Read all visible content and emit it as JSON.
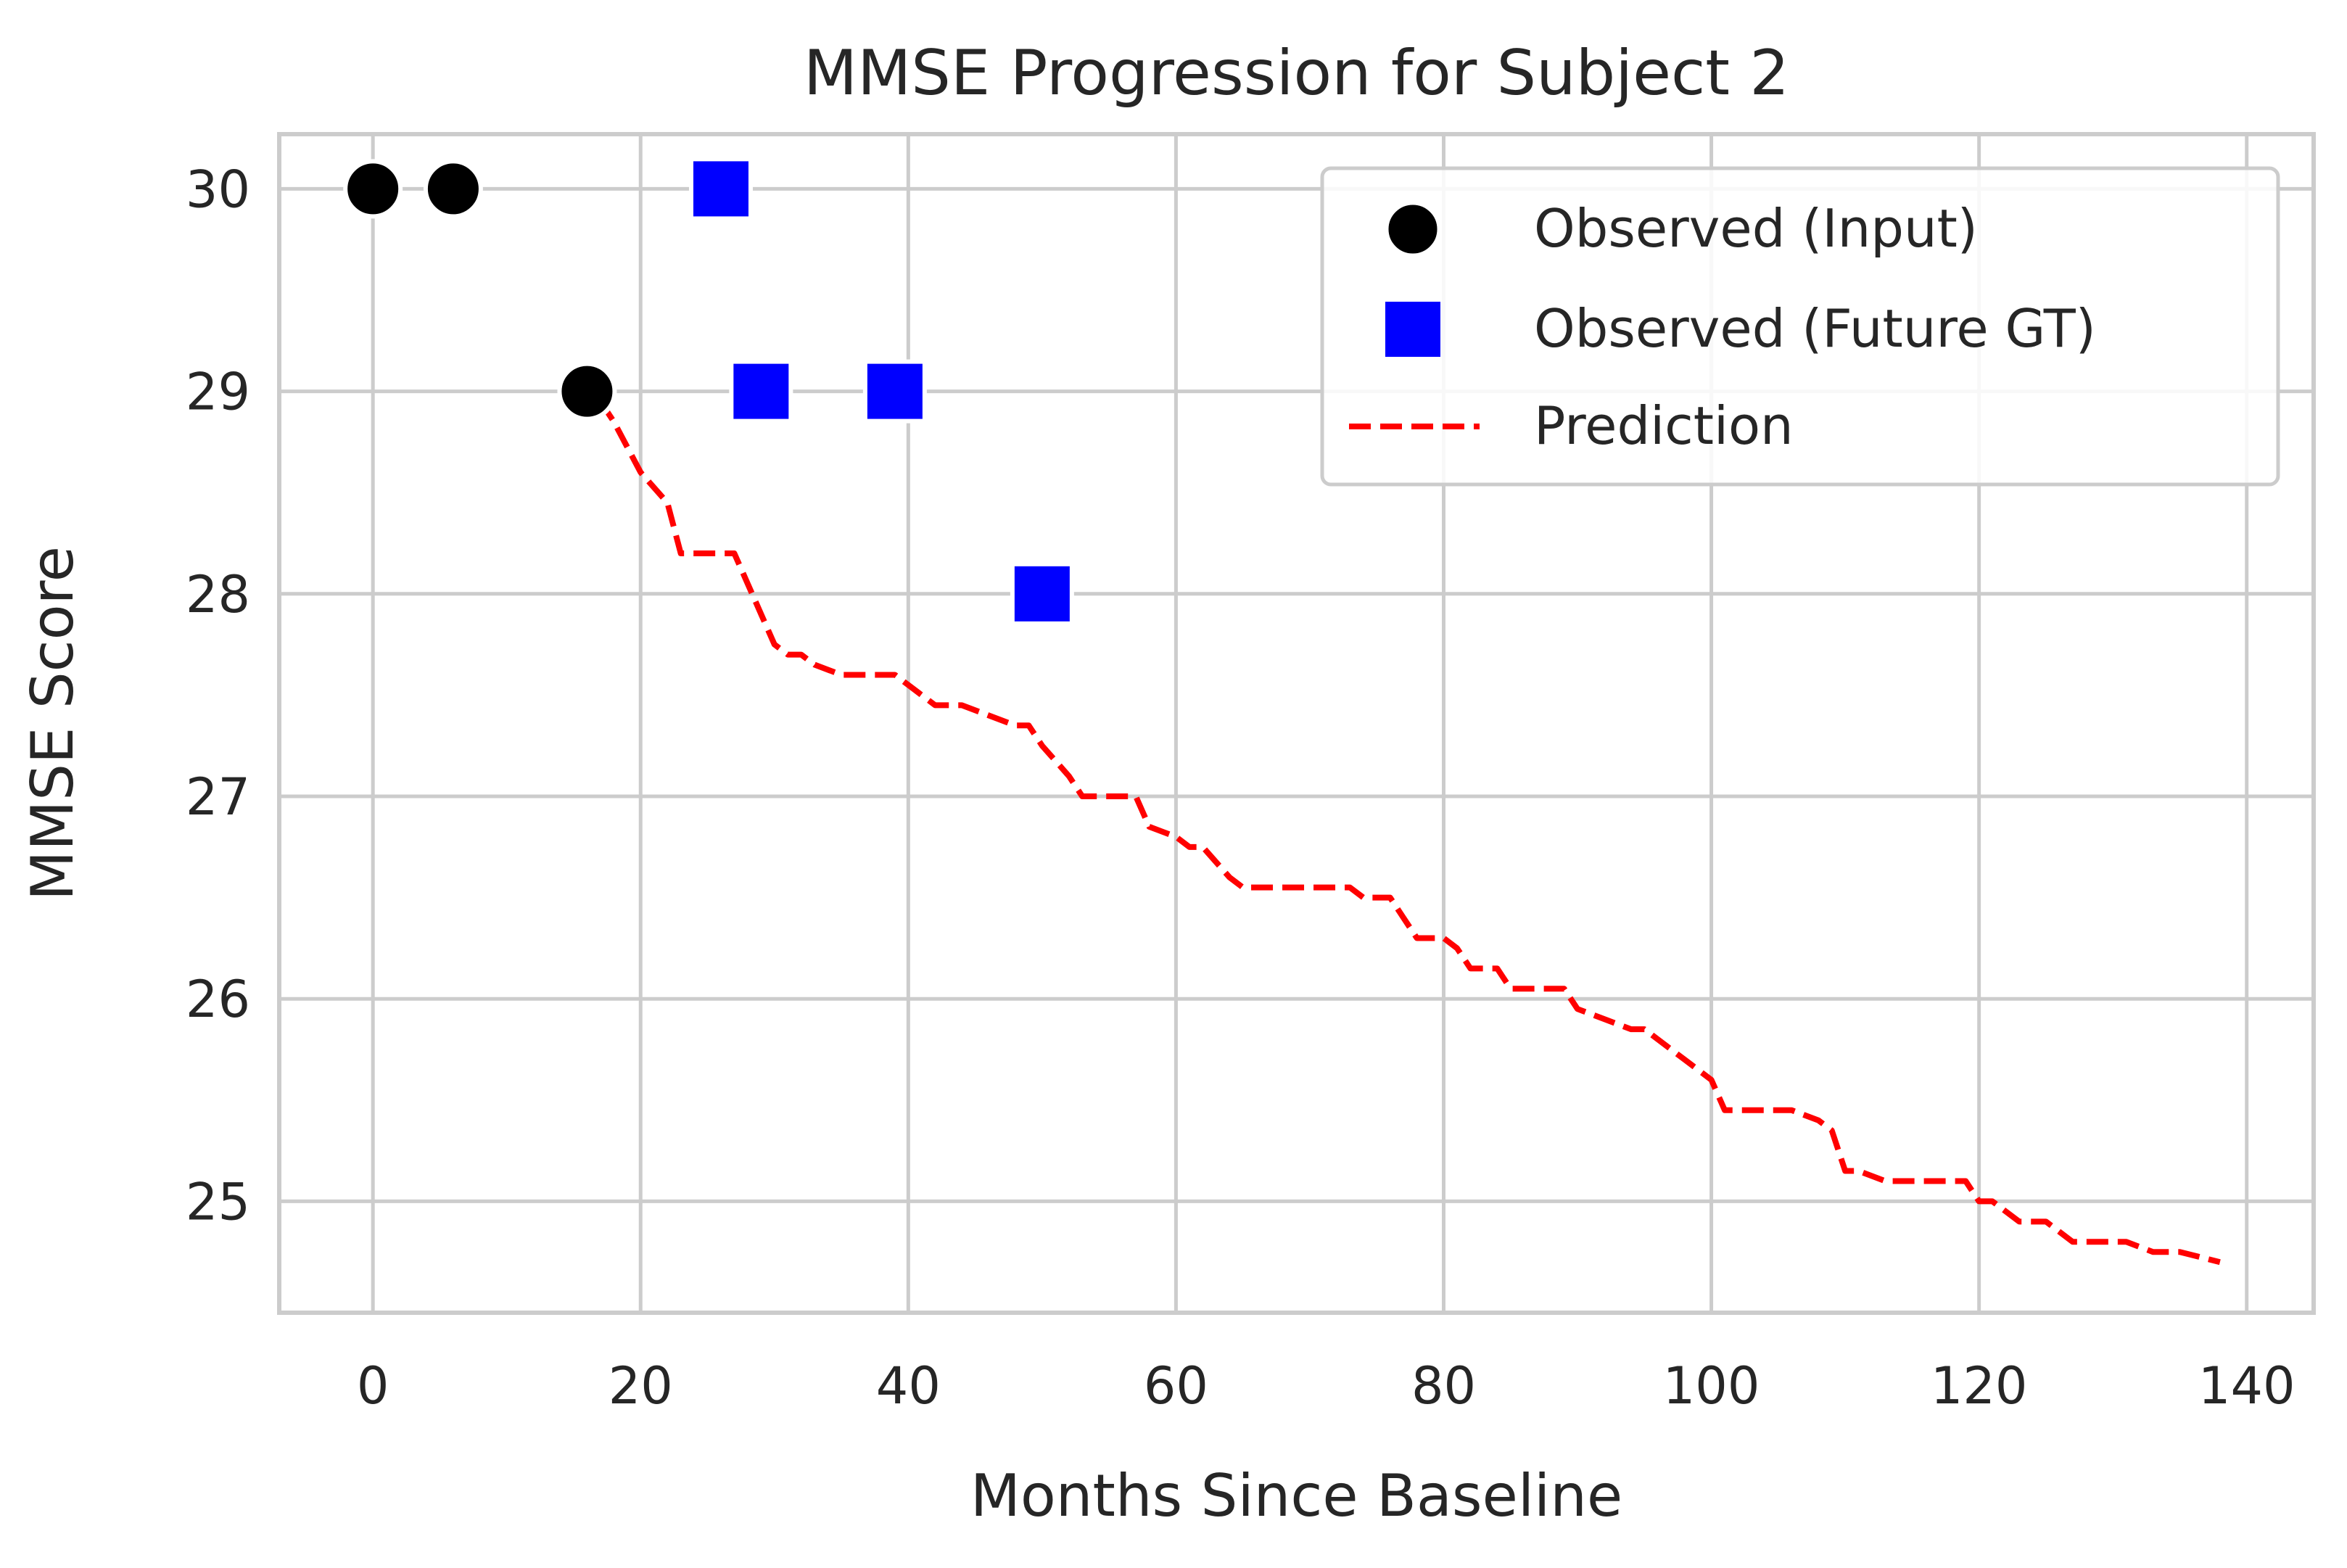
{
  "chart_data": {
    "type": "scatter",
    "title": "MMSE Progression for Subject 2",
    "xlabel": "Months Since Baseline",
    "ylabel": "MMSE Score",
    "xlim": [
      -7,
      145
    ],
    "ylim": [
      24.45,
      30.27
    ],
    "x_ticks": [
      0,
      20,
      40,
      60,
      80,
      100,
      120,
      140
    ],
    "y_ticks": [
      25,
      26,
      27,
      28,
      29,
      30
    ],
    "grid": true,
    "legend_position": "top-right",
    "series": [
      {
        "name": "Observed (Input)",
        "kind": "scatter",
        "marker": "circle",
        "color": "#000000",
        "x": [
          0,
          6,
          16
        ],
        "y": [
          30,
          30,
          29
        ]
      },
      {
        "name": "Observed (Future GT)",
        "kind": "scatter",
        "marker": "square",
        "color": "#0000ff",
        "x": [
          26,
          29,
          39,
          50
        ],
        "y": [
          30,
          29,
          29,
          28
        ]
      },
      {
        "name": "Prediction",
        "kind": "line",
        "style": "dashed",
        "color": "#ff0000",
        "x": [
          17,
          18,
          20,
          22,
          23,
          25,
          27,
          28,
          29,
          30,
          31,
          32,
          33,
          35,
          37,
          39,
          40,
          42,
          44,
          46,
          48,
          49,
          50,
          52,
          53,
          55,
          57,
          58,
          60,
          61,
          62,
          64,
          65,
          67,
          70,
          73,
          74,
          76,
          77,
          78,
          80,
          81,
          82,
          84,
          85,
          87,
          89,
          90,
          92,
          94,
          95,
          97,
          98,
          100,
          101,
          102,
          104,
          106,
          108,
          109,
          110,
          111,
          113,
          115,
          117,
          119,
          120,
          121,
          123,
          125,
          127,
          129,
          131,
          133,
          135,
          138
        ],
        "y": [
          28.95,
          28.85,
          28.6,
          28.45,
          28.2,
          28.2,
          28.2,
          28.05,
          27.9,
          27.75,
          27.7,
          27.7,
          27.65,
          27.6,
          27.6,
          27.6,
          27.55,
          27.45,
          27.45,
          27.4,
          27.35,
          27.35,
          27.25,
          27.1,
          27.0,
          27.0,
          27.0,
          26.85,
          26.8,
          26.75,
          26.75,
          26.6,
          26.55,
          26.55,
          26.55,
          26.55,
          26.5,
          26.5,
          26.4,
          26.3,
          26.3,
          26.25,
          26.15,
          26.15,
          26.05,
          26.05,
          26.05,
          25.95,
          25.9,
          25.85,
          25.85,
          25.75,
          25.7,
          25.6,
          25.45,
          25.45,
          25.45,
          25.45,
          25.4,
          25.35,
          25.15,
          25.15,
          25.1,
          25.1,
          25.1,
          25.1,
          25.0,
          25.0,
          24.9,
          24.9,
          24.8,
          24.8,
          24.8,
          24.75,
          24.75,
          24.7
        ]
      }
    ]
  }
}
